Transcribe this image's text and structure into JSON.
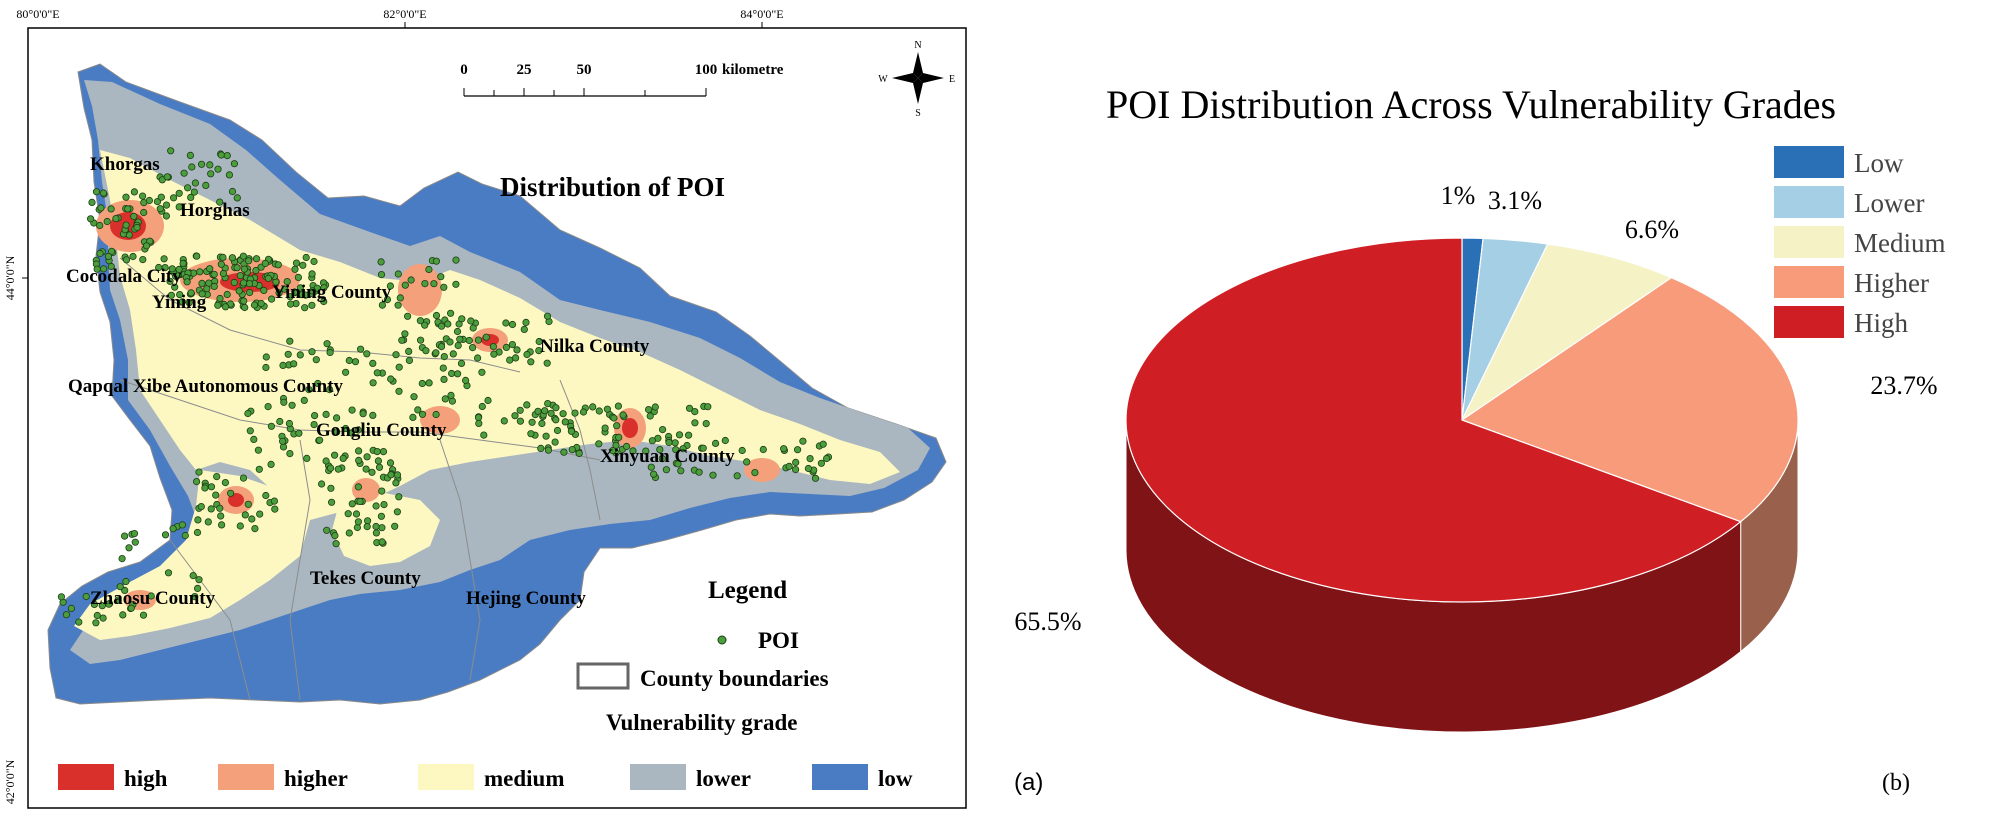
{
  "panel_a": {
    "label": "(a)",
    "title": "Distribution of POI",
    "coordinates": {
      "lon_labels": [
        "80°0'0\"E",
        "82°0'0\"E",
        "84°0'0\"E"
      ],
      "lat_labels": [
        "44°0'0\"N",
        "42°0'0\"N"
      ]
    },
    "scale_bar": {
      "ticks": [
        "0",
        "25",
        "50",
        "100"
      ],
      "unit": "kilometre"
    },
    "compass": {
      "n": "N",
      "s": "S",
      "e": "E",
      "w": "W"
    },
    "counties": [
      "Khorgas",
      "Horghas",
      "Cocodala City",
      "Yining",
      "Yining County",
      "Nilka County",
      "Qapqal Xibe Autonomous County",
      "Gongliu County",
      "Xinyuan County",
      "Zhaosu County",
      "Tekes County",
      "Hejing County"
    ],
    "legend": {
      "title": "Legend",
      "poi_label": "POI",
      "boundary_label": "County boundaries",
      "grade_title": "Vulnerability grade",
      "classes": [
        {
          "label": "high",
          "color": "#d9302c"
        },
        {
          "label": "higher",
          "color": "#f4a07a"
        },
        {
          "label": "medium",
          "color": "#fdf8c2"
        },
        {
          "label": "lower",
          "color": "#aab7c0"
        },
        {
          "label": "low",
          "color": "#4a7cc4"
        }
      ],
      "poi_color": "#4c9e3d"
    }
  },
  "panel_b": {
    "label": "(b)",
    "chart_data": {
      "type": "pie",
      "title": "POI Distribution Across Vulnerability Grades",
      "categories": [
        "Low",
        "Lower",
        "Medium",
        "Higher",
        "High"
      ],
      "values": [
        1.0,
        3.1,
        6.6,
        23.7,
        65.5
      ],
      "value_labels": [
        "1%",
        "3.1%",
        "6.6%",
        "23.7%",
        "65.5%"
      ],
      "colors": [
        "#2a70b6",
        "#a5cfe4",
        "#f5f2c6",
        "#f79b7a",
        "#cf1e24"
      ],
      "legend_position": "top-right",
      "style": "3d"
    }
  }
}
